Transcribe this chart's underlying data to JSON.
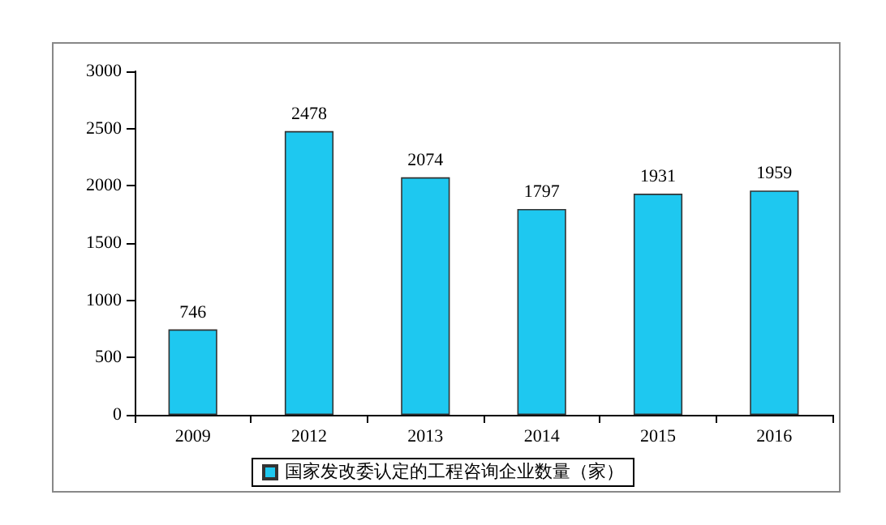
{
  "chart_data": {
    "type": "bar",
    "categories": [
      "2009",
      "2012",
      "2013",
      "2014",
      "2015",
      "2016"
    ],
    "series": [
      {
        "name": "国家发改委认定的工程咨询企业数量（家）",
        "color": "#1ec8f0",
        "values": [
          746,
          2478,
          2074,
          1797,
          1931,
          1959
        ]
      }
    ],
    "ylim": [
      0,
      3000
    ],
    "yticks": [
      0,
      500,
      1000,
      1500,
      2000,
      2500,
      3000
    ],
    "grid": false,
    "legend": "bottom",
    "data_labels": true
  }
}
